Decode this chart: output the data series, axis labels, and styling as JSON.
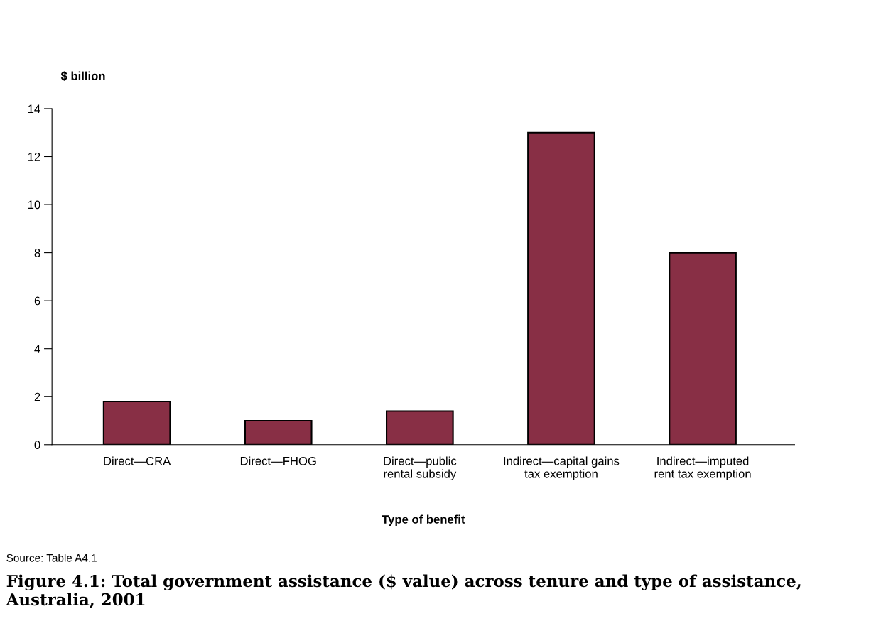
{
  "chart_data": {
    "type": "bar",
    "title": "Figure 4.1: Total government assistance ($ value) across tenure and type of assistance, Australia, 2001",
    "ylabel": "$ billion",
    "xlabel": "Type of benefit",
    "annotations": [
      "Source: Table A4.1"
    ],
    "categories": [
      "Direct—CRA",
      "Direct—FHOG",
      "Direct—public\nrental subsidy",
      "Indirect—capital gains\ntax exemption",
      "Indirect—imputed\nrent tax exemption"
    ],
    "values": [
      1.8,
      1.0,
      1.4,
      13.0,
      8.0
    ],
    "color": "#882f45",
    "ylim": [
      0,
      14
    ],
    "yticks": [
      0,
      2,
      4,
      6,
      8,
      10,
      12,
      14
    ],
    "grid": false,
    "legend": false
  }
}
